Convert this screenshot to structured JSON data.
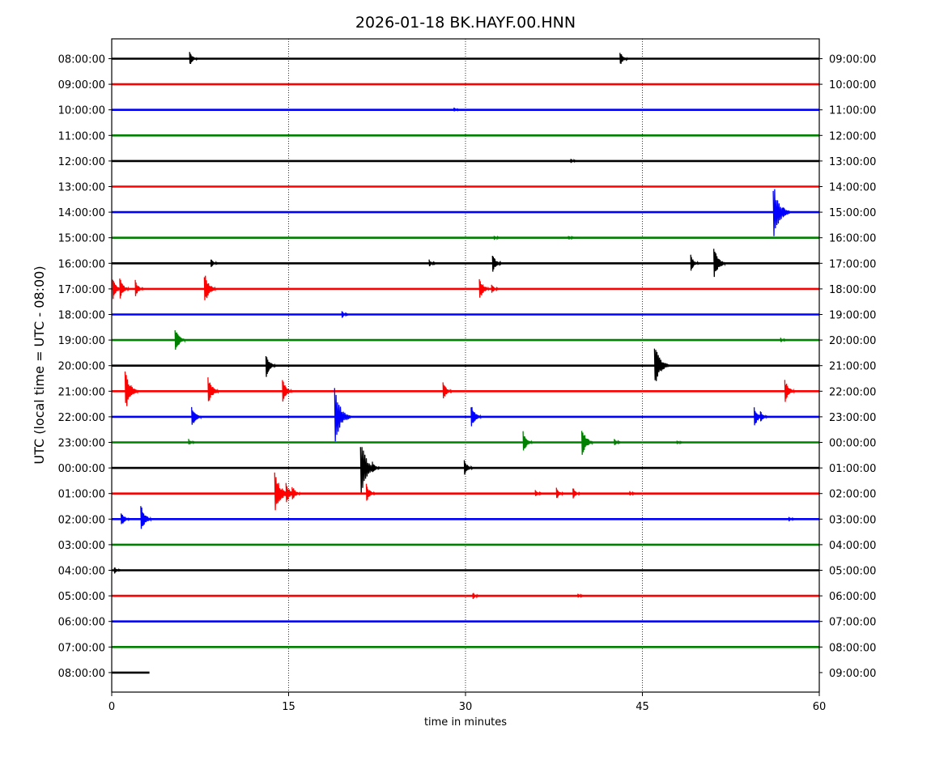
{
  "chart_data": {
    "type": "line",
    "title": "2026-01-18 BK.HAYF.00.HNN",
    "xlabel": "time in minutes",
    "ylabel": "UTC (local time = UTC - 08:00)",
    "xlim": [
      0,
      60
    ],
    "x_ticks": [
      0,
      15,
      30,
      45,
      60
    ],
    "x_tick_labels": [
      "0",
      "15",
      "30",
      "45",
      "60"
    ],
    "grid": "vertical dotted at 15, 30, 45",
    "trace_colors": [
      "#000000",
      "#ff0000",
      "#0000ff",
      "#008000"
    ],
    "last_trace_end_minute": 3.2,
    "rows": [
      {
        "left": "08:00:00",
        "right": "09:00:00",
        "events": [
          [
            6.7,
            0.6
          ],
          [
            43.2,
            0.6
          ]
        ]
      },
      {
        "left": "09:00:00",
        "right": "10:00:00",
        "events": []
      },
      {
        "left": "10:00:00",
        "right": "11:00:00",
        "events": [
          [
            29.1,
            0.2
          ]
        ]
      },
      {
        "left": "11:00:00",
        "right": "12:00:00",
        "events": []
      },
      {
        "left": "12:00:00",
        "right": "13:00:00",
        "events": [
          [
            39.0,
            0.2
          ]
        ]
      },
      {
        "left": "13:00:00",
        "right": "14:00:00",
        "events": []
      },
      {
        "left": "14:00:00",
        "right": "15:00:00",
        "events": [
          [
            56.3,
            2.3
          ],
          [
            57.0,
            0.5
          ]
        ]
      },
      {
        "left": "15:00:00",
        "right": "16:00:00",
        "events": [
          [
            32.5,
            0.2
          ],
          [
            38.8,
            0.2
          ]
        ]
      },
      {
        "left": "16:00:00",
        "right": "17:00:00",
        "events": [
          [
            8.5,
            0.4
          ],
          [
            27.0,
            0.3
          ],
          [
            32.4,
            0.8
          ],
          [
            49.2,
            0.7
          ],
          [
            51.2,
            1.4
          ]
        ]
      },
      {
        "left": "17:00:00",
        "right": "18:00:00",
        "events": [
          [
            0.2,
            0.9
          ],
          [
            0.8,
            0.9
          ],
          [
            2.1,
            0.7
          ],
          [
            8.0,
            1.4
          ],
          [
            31.3,
            1.0
          ],
          [
            32.3,
            0.4
          ]
        ]
      },
      {
        "left": "18:00:00",
        "right": "19:00:00",
        "events": [
          [
            19.6,
            0.3
          ]
        ]
      },
      {
        "left": "19:00:00",
        "right": "20:00:00",
        "events": [
          [
            5.5,
            1.1
          ],
          [
            56.8,
            0.2
          ]
        ]
      },
      {
        "left": "20:00:00",
        "right": "21:00:00",
        "events": [
          [
            13.2,
            1.0
          ],
          [
            46.2,
            1.9
          ]
        ]
      },
      {
        "left": "21:00:00",
        "right": "22:00:00",
        "events": [
          [
            1.3,
            1.7
          ],
          [
            8.3,
            1.2
          ],
          [
            14.6,
            1.0
          ],
          [
            28.2,
            0.8
          ],
          [
            57.2,
            1.0
          ]
        ]
      },
      {
        "left": "22:00:00",
        "right": "23:00:00",
        "events": [
          [
            6.9,
            1.0
          ],
          [
            19.1,
            2.3
          ],
          [
            30.6,
            1.1
          ],
          [
            54.6,
            0.9
          ],
          [
            55.1,
            0.5
          ]
        ]
      },
      {
        "left": "23:00:00",
        "right": "00:00:00",
        "events": [
          [
            6.6,
            0.3
          ],
          [
            35.0,
            0.9
          ],
          [
            40.0,
            1.3
          ],
          [
            42.7,
            0.3
          ],
          [
            48.0,
            0.2
          ]
        ]
      },
      {
        "left": "00:00:00",
        "right": "01:00:00",
        "events": [
          [
            21.3,
            2.3
          ],
          [
            22.2,
            0.5
          ],
          [
            30.0,
            0.7
          ]
        ]
      },
      {
        "left": "01:00:00",
        "right": "02:00:00",
        "events": [
          [
            14.0,
            1.9
          ],
          [
            14.9,
            0.9
          ],
          [
            15.4,
            0.7
          ],
          [
            21.7,
            0.8
          ],
          [
            36.0,
            0.3
          ],
          [
            37.8,
            0.5
          ],
          [
            39.2,
            0.5
          ],
          [
            44.0,
            0.2
          ]
        ]
      },
      {
        "left": "02:00:00",
        "right": "03:00:00",
        "events": [
          [
            0.9,
            0.7
          ],
          [
            2.6,
            1.2
          ],
          [
            57.5,
            0.2
          ]
        ]
      },
      {
        "left": "03:00:00",
        "right": "04:00:00",
        "events": []
      },
      {
        "left": "04:00:00",
        "right": "05:00:00",
        "events": [
          [
            0.3,
            0.3
          ]
        ]
      },
      {
        "left": "05:00:00",
        "right": "06:00:00",
        "events": [
          [
            30.7,
            0.3
          ],
          [
            39.6,
            0.2
          ]
        ]
      },
      {
        "left": "06:00:00",
        "right": "07:00:00",
        "events": []
      },
      {
        "left": "07:00:00",
        "right": "08:00:00",
        "events": []
      },
      {
        "left": "08:00:00",
        "right": "09:00:00",
        "events": []
      }
    ]
  }
}
